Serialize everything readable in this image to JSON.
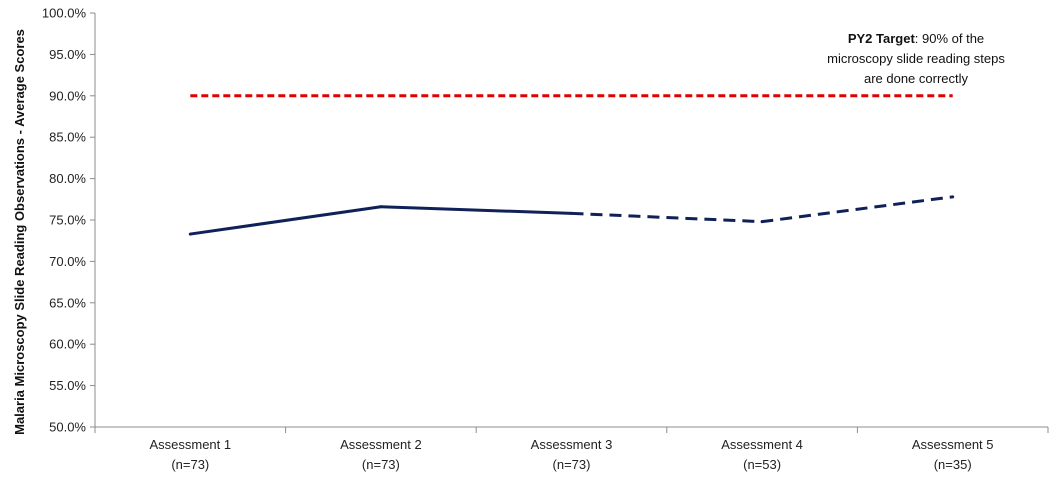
{
  "chart_data": {
    "type": "line",
    "title": "",
    "xlabel": "",
    "ylabel": "Malaria Microscopy Slide Reading Observations - Average Scores",
    "ylim": [
      50,
      100
    ],
    "y_ticks": [
      "50.0%",
      "55.0%",
      "60.0%",
      "65.0%",
      "70.0%",
      "75.0%",
      "80.0%",
      "85.0%",
      "90.0%",
      "95.0%",
      "100.0%"
    ],
    "categories": [
      {
        "line1": "Assessment 1",
        "line2": "(n=73)"
      },
      {
        "line1": "Assessment 2",
        "line2": "(n=73)"
      },
      {
        "line1": "Assessment 3",
        "line2": "(n=73)"
      },
      {
        "line1": "Assessment 4",
        "line2": "(n=53)"
      },
      {
        "line1": "Assessment 5",
        "line2": "(n=35)"
      }
    ],
    "series": [
      {
        "values": [
          73.3,
          76.6,
          75.8,
          74.8,
          77.8
        ],
        "color": "#0f2157",
        "style": "solid for Assessments 1-3, dashed for Assessments 3-5"
      },
      {
        "values": [
          90,
          90,
          90,
          90,
          90
        ],
        "color": "#e00000",
        "style": "dashed"
      }
    ],
    "annotation": {
      "bold": "PY2 Target",
      "rest": ": 90% of the",
      "line2": "microscopy slide reading steps",
      "line3": "are done correctly"
    },
    "grid": false,
    "legend": "none"
  }
}
